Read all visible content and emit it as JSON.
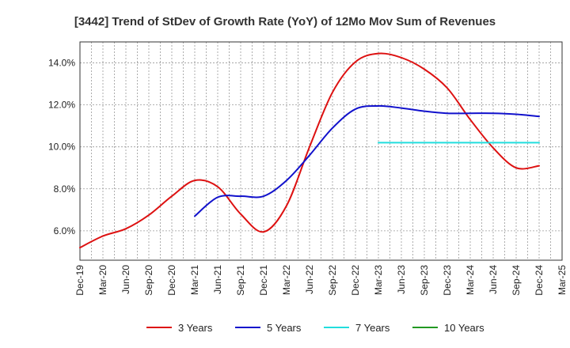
{
  "chart_data": {
    "type": "line",
    "title": "[3442]  Trend of StDev of Growth Rate (YoY) of 12Mo Mov Sum of Revenues",
    "xlabel": "",
    "ylabel": "",
    "x": [
      "Dec-19",
      "Mar-20",
      "Jun-20",
      "Sep-20",
      "Dec-20",
      "Mar-21",
      "Jun-21",
      "Sep-21",
      "Dec-21",
      "Mar-22",
      "Jun-22",
      "Sep-22",
      "Dec-22",
      "Mar-23",
      "Jun-23",
      "Sep-23",
      "Dec-23",
      "Mar-24",
      "Jun-24",
      "Sep-24",
      "Dec-24",
      "Mar-25"
    ],
    "ylim": [
      4.6,
      15.0
    ],
    "yticks": [
      6.0,
      8.0,
      10.0,
      12.0,
      14.0
    ],
    "ytick_labels": [
      "6.0%",
      "8.0%",
      "10.0%",
      "12.0%",
      "14.0%"
    ],
    "grid": true,
    "legend_position": "bottom",
    "series": [
      {
        "name": "3 Years",
        "color": "#dd1111",
        "values": [
          5.2,
          5.75,
          6.1,
          6.75,
          7.65,
          8.4,
          8.1,
          6.8,
          5.95,
          7.2,
          10.0,
          12.6,
          14.05,
          14.45,
          14.25,
          13.7,
          12.8,
          11.3,
          9.95,
          9.0,
          9.1,
          null
        ]
      },
      {
        "name": "5 Years",
        "color": "#1111cc",
        "values": [
          null,
          null,
          null,
          null,
          null,
          6.7,
          7.6,
          7.65,
          7.65,
          8.4,
          9.6,
          10.9,
          11.8,
          11.95,
          11.85,
          11.7,
          11.6,
          11.6,
          11.6,
          11.55,
          11.45,
          null
        ]
      },
      {
        "name": "7 Years",
        "color": "#22dddd",
        "values": [
          null,
          null,
          null,
          null,
          null,
          null,
          null,
          null,
          null,
          null,
          null,
          null,
          null,
          10.2,
          10.2,
          10.2,
          10.2,
          10.2,
          10.2,
          10.2,
          10.2,
          null
        ]
      },
      {
        "name": "10 Years",
        "color": "#229922",
        "values": [
          null,
          null,
          null,
          null,
          null,
          null,
          null,
          null,
          null,
          null,
          null,
          null,
          null,
          null,
          null,
          null,
          null,
          null,
          null,
          null,
          null,
          null
        ]
      }
    ]
  }
}
